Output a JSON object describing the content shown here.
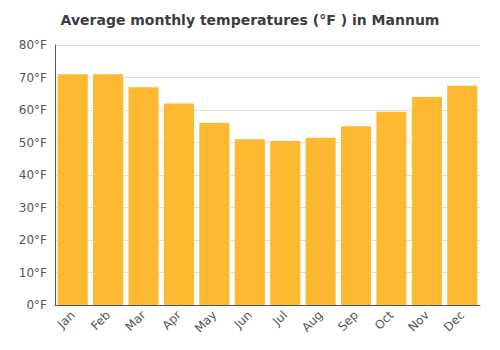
{
  "chart_data": {
    "type": "bar",
    "title": "Average monthly temperatures (°F ) in Mannum",
    "categories": [
      "Jan",
      "Feb",
      "Mar",
      "Apr",
      "May",
      "Jun",
      "Jul",
      "Aug",
      "Sep",
      "Oct",
      "Nov",
      "Dec"
    ],
    "values": [
      71,
      71,
      67,
      62,
      56,
      51,
      50.5,
      51.5,
      55,
      59.5,
      64,
      67.5
    ],
    "color": "#FDB931",
    "ylim": [
      0,
      80
    ],
    "yticks": [
      {
        "value": 0,
        "label": "0°F"
      },
      {
        "value": 10,
        "label": "10°F"
      },
      {
        "value": 20,
        "label": "20°F"
      },
      {
        "value": 30,
        "label": "30°F"
      },
      {
        "value": 40,
        "label": "40°F"
      },
      {
        "value": 50,
        "label": "50°F"
      },
      {
        "value": 60,
        "label": "60°F"
      },
      {
        "value": 70,
        "label": "70°F"
      },
      {
        "value": 80,
        "label": "80°F"
      }
    ],
    "grid": true
  }
}
